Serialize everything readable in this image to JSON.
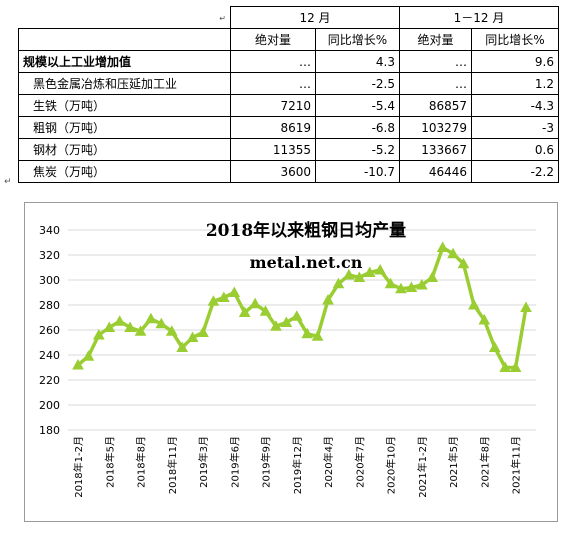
{
  "table": {
    "corner_mark": "↵",
    "header_groups": [
      "12 月",
      "1－12 月"
    ],
    "subheaders": [
      "绝对量",
      "同比增长%",
      "绝对量",
      "同比增长%"
    ],
    "rows": [
      {
        "label": "规模以上工业增加值",
        "dec_abs": "…",
        "dec_yoy": "4.3",
        "ytd_abs": "…",
        "ytd_yoy": "9.6"
      },
      {
        "label": "黑色金属冶炼和压延加工业",
        "dec_abs": "…",
        "dec_yoy": "-2.5",
        "ytd_abs": "…",
        "ytd_yoy": "1.2"
      },
      {
        "label": "生铁（万吨）",
        "dec_abs": "7210",
        "dec_yoy": "-5.4",
        "ytd_abs": "86857",
        "ytd_yoy": "-4.3"
      },
      {
        "label": "粗钢（万吨）",
        "dec_abs": "8619",
        "dec_yoy": "-6.8",
        "ytd_abs": "103279",
        "ytd_yoy": "-3"
      },
      {
        "label": "钢材（万吨）",
        "dec_abs": "11355",
        "dec_yoy": "-5.2",
        "ytd_abs": "133667",
        "ytd_yoy": "0.6"
      },
      {
        "label": "焦炭（万吨）",
        "dec_abs": "3600",
        "dec_yoy": "-10.7",
        "ytd_abs": "46446",
        "ytd_yoy": "-2.2"
      }
    ],
    "after_mark": "↵"
  },
  "colors": {
    "series": "#9ACD32",
    "grid": "#d9d9d9",
    "frame": "#9a9a9a"
  },
  "chart_data": {
    "type": "line",
    "title": "2018年以来粗钢日均产量",
    "watermark": "metal.net.cn",
    "xlabel": "",
    "ylabel": "",
    "ylim": [
      180,
      340
    ],
    "yticks": [
      180,
      200,
      220,
      240,
      260,
      280,
      300,
      320,
      340
    ],
    "grid": true,
    "legend": "none",
    "x": [
      "2018年1-2月",
      "2018年3月",
      "2018年4月",
      "2018年5月",
      "2018年6月",
      "2018年7月",
      "2018年8月",
      "2018年9月",
      "2018年10月",
      "2018年11月",
      "2018年12月",
      "2019年1-2月",
      "2019年3月",
      "2019年4月",
      "2019年5月",
      "2019年6月",
      "2019年7月",
      "2019年8月",
      "2019年9月",
      "2019年10月",
      "2019年11月",
      "2019年12月",
      "2020年1-2月",
      "2020年3月",
      "2020年4月",
      "2020年5月",
      "2020年6月",
      "2020年7月",
      "2020年8月",
      "2020年9月",
      "2020年10月",
      "2020年11月",
      "2020年12月",
      "2021年1-2月",
      "2021年3月",
      "2021年4月",
      "2021年5月",
      "2021年6月",
      "2021年7月",
      "2021年8月",
      "2021年9月",
      "2021年10月",
      "2021年11月",
      "2021年12月"
    ],
    "x_tick_labels": [
      "2018年1-2月",
      "2018年5月",
      "2018年8月",
      "2018年11月",
      "2019年3月",
      "2019年6月",
      "2019年9月",
      "2019年12月",
      "2020年4月",
      "2020年7月",
      "2020年10月",
      "2021年1-2月",
      "2021年5月",
      "2021年8月",
      "2021年11月"
    ],
    "series": [
      {
        "values": [
          232,
          239,
          256,
          262,
          267,
          262,
          259,
          269,
          265,
          259,
          246,
          254,
          258,
          283,
          286,
          290,
          274,
          281,
          275,
          263,
          266,
          271,
          257,
          255,
          284,
          297,
          304,
          302,
          306,
          308,
          297,
          293,
          294,
          296,
          302,
          326,
          321,
          313,
          280,
          268,
          246,
          230,
          230,
          278
        ]
      }
    ]
  }
}
